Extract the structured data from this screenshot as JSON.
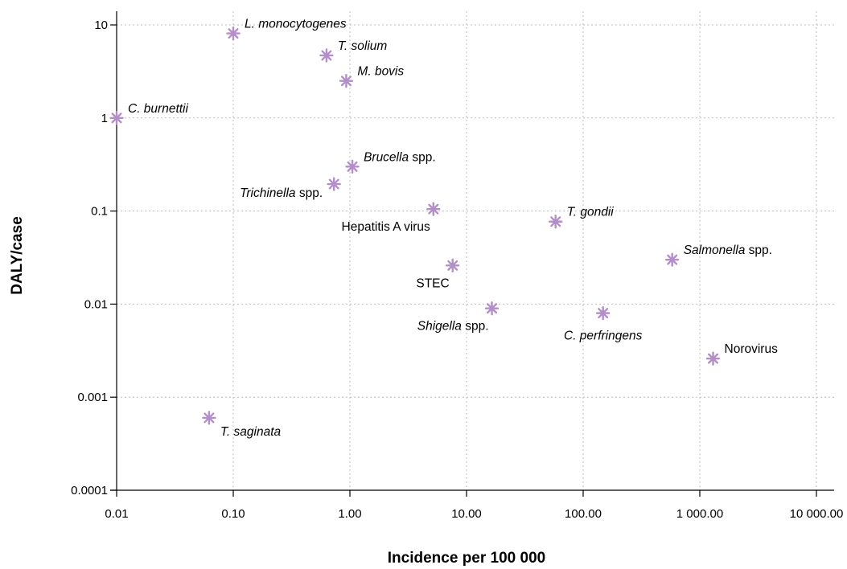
{
  "chart_data": {
    "type": "scatter",
    "xlabel": "Incidence per 100 000",
    "ylabel": "DALY/case",
    "xscale": "log",
    "yscale": "log",
    "xlim": [
      0.01,
      10000
    ],
    "ylim": [
      0.0001,
      10
    ],
    "grid": true,
    "marker_color": "#b48ec8",
    "x_ticks": [
      {
        "value": 0.01,
        "label": "0.01"
      },
      {
        "value": 0.1,
        "label": "0.10"
      },
      {
        "value": 1,
        "label": "1.00"
      },
      {
        "value": 10,
        "label": "10.00"
      },
      {
        "value": 100,
        "label": "100.00"
      },
      {
        "value": 1000,
        "label": "1 000.00"
      },
      {
        "value": 10000,
        "label": "10 000.00"
      }
    ],
    "y_ticks": [
      {
        "value": 0.0001,
        "label": "0.0001"
      },
      {
        "value": 0.001,
        "label": "0.001"
      },
      {
        "value": 0.01,
        "label": "0.01"
      },
      {
        "value": 0.1,
        "label": "0.1"
      },
      {
        "value": 1,
        "label": "1"
      },
      {
        "value": 10,
        "label": "10"
      }
    ],
    "points": [
      {
        "name": "L. monocytogenes",
        "label": [
          {
            "t": "L. monocytogenes",
            "i": true
          }
        ],
        "x": 0.1,
        "y": 8.1,
        "pos": "ne"
      },
      {
        "name": "T. solium",
        "label": [
          {
            "t": "T. solium",
            "i": true
          }
        ],
        "x": 0.63,
        "y": 4.7,
        "pos": "ne"
      },
      {
        "name": "M. bovis",
        "label": [
          {
            "t": "M. bovis",
            "i": true
          }
        ],
        "x": 0.93,
        "y": 2.5,
        "pos": "ne"
      },
      {
        "name": "C. burnettii",
        "label": [
          {
            "t": "C. burnettii",
            "i": true
          }
        ],
        "x": 0.01,
        "y": 1.0,
        "pos": "ne"
      },
      {
        "name": "Brucella spp.",
        "label": [
          {
            "t": "Brucella",
            "i": true
          },
          {
            "t": " spp.",
            "i": false
          }
        ],
        "x": 1.05,
        "y": 0.3,
        "pos": "ne"
      },
      {
        "name": "Trichinella spp.",
        "label": [
          {
            "t": "Trichinella",
            "i": true
          },
          {
            "t": " spp.",
            "i": false
          }
        ],
        "x": 0.73,
        "y": 0.195,
        "pos": "w"
      },
      {
        "name": "Hepatitis A virus",
        "label": [
          {
            "t": "Hepatitis A virus",
            "i": false
          }
        ],
        "x": 5.2,
        "y": 0.105,
        "pos": "sw"
      },
      {
        "name": "T. gondii",
        "label": [
          {
            "t": "T. gondii",
            "i": true
          }
        ],
        "x": 58,
        "y": 0.077,
        "pos": "ne"
      },
      {
        "name": "Salmonella spp.",
        "label": [
          {
            "t": "Salmonella",
            "i": true
          },
          {
            "t": " spp.",
            "i": false
          }
        ],
        "x": 580,
        "y": 0.03,
        "pos": "ne"
      },
      {
        "name": "STEC",
        "label": [
          {
            "t": "STEC",
            "i": false
          }
        ],
        "x": 7.6,
        "y": 0.026,
        "pos": "sw"
      },
      {
        "name": "Shigella spp.",
        "label": [
          {
            "t": "Shigella",
            "i": true
          },
          {
            "t": " spp.",
            "i": false
          }
        ],
        "x": 16.5,
        "y": 0.009,
        "pos": "sw"
      },
      {
        "name": "C. perfringens",
        "label": [
          {
            "t": "C. perfringens",
            "i": true
          }
        ],
        "x": 148,
        "y": 0.008,
        "pos": "s"
      },
      {
        "name": "Norovirus",
        "label": [
          {
            "t": "Norovirus",
            "i": false
          }
        ],
        "x": 1300,
        "y": 0.0026,
        "pos": "ne"
      },
      {
        "name": "T. saginata",
        "label": [
          {
            "t": "T. saginata",
            "i": true
          }
        ],
        "x": 0.062,
        "y": 0.0006,
        "pos": "se"
      }
    ]
  }
}
